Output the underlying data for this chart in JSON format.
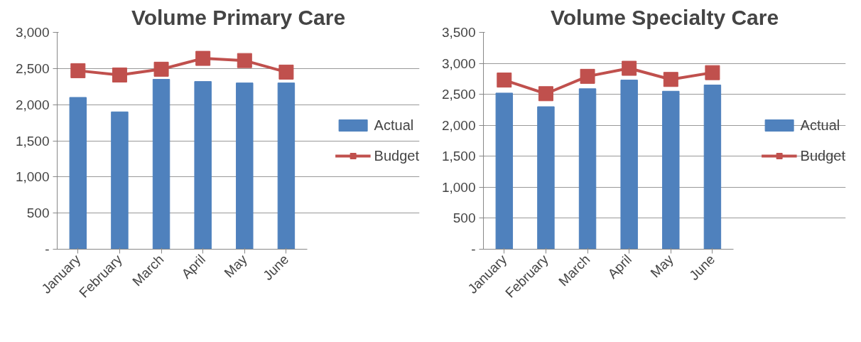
{
  "chart_data": [
    {
      "type": "bar",
      "title": "Volume Primary Care",
      "categories": [
        "January",
        "February",
        "March",
        "April",
        "May",
        "June"
      ],
      "series": [
        {
          "name": "Actual",
          "color": "#4f81bd",
          "values": [
            2100,
            1900,
            2350,
            2320,
            2300,
            2300
          ]
        },
        {
          "name": "Budget",
          "type": "line",
          "color": "#c0504d",
          "values": [
            2470,
            2410,
            2490,
            2640,
            2610,
            2450
          ]
        }
      ],
      "ylim": [
        0,
        3000
      ],
      "yticks": [
        {
          "value": 0,
          "label": "-"
        },
        {
          "value": 500,
          "label": "500"
        },
        {
          "value": 1000,
          "label": "1,000"
        },
        {
          "value": 1500,
          "label": "1,500"
        },
        {
          "value": 2000,
          "label": "2,000"
        },
        {
          "value": 2500,
          "label": "2,500"
        },
        {
          "value": 3000,
          "label": "3,000"
        }
      ],
      "grid": "y",
      "legend": "right",
      "marker": "square"
    },
    {
      "type": "bar",
      "title": "Volume Specialty Care",
      "categories": [
        "January",
        "February",
        "March",
        "April",
        "May",
        "June"
      ],
      "series": [
        {
          "name": "Actual",
          "color": "#4f81bd",
          "values": [
            2520,
            2300,
            2590,
            2730,
            2550,
            2650
          ]
        },
        {
          "name": "Budget",
          "type": "line",
          "color": "#c0504d",
          "values": [
            2730,
            2510,
            2790,
            2920,
            2740,
            2850
          ]
        }
      ],
      "ylim": [
        0,
        3500
      ],
      "yticks": [
        {
          "value": 0,
          "label": "-"
        },
        {
          "value": 500,
          "label": "500"
        },
        {
          "value": 1000,
          "label": "1,000"
        },
        {
          "value": 1500,
          "label": "1,500"
        },
        {
          "value": 2000,
          "label": "2,000"
        },
        {
          "value": 2500,
          "label": "2,500"
        },
        {
          "value": 3000,
          "label": "3,000"
        },
        {
          "value": 3500,
          "label": "3,500"
        }
      ],
      "grid": "y",
      "legend": "right",
      "marker": "square"
    }
  ]
}
